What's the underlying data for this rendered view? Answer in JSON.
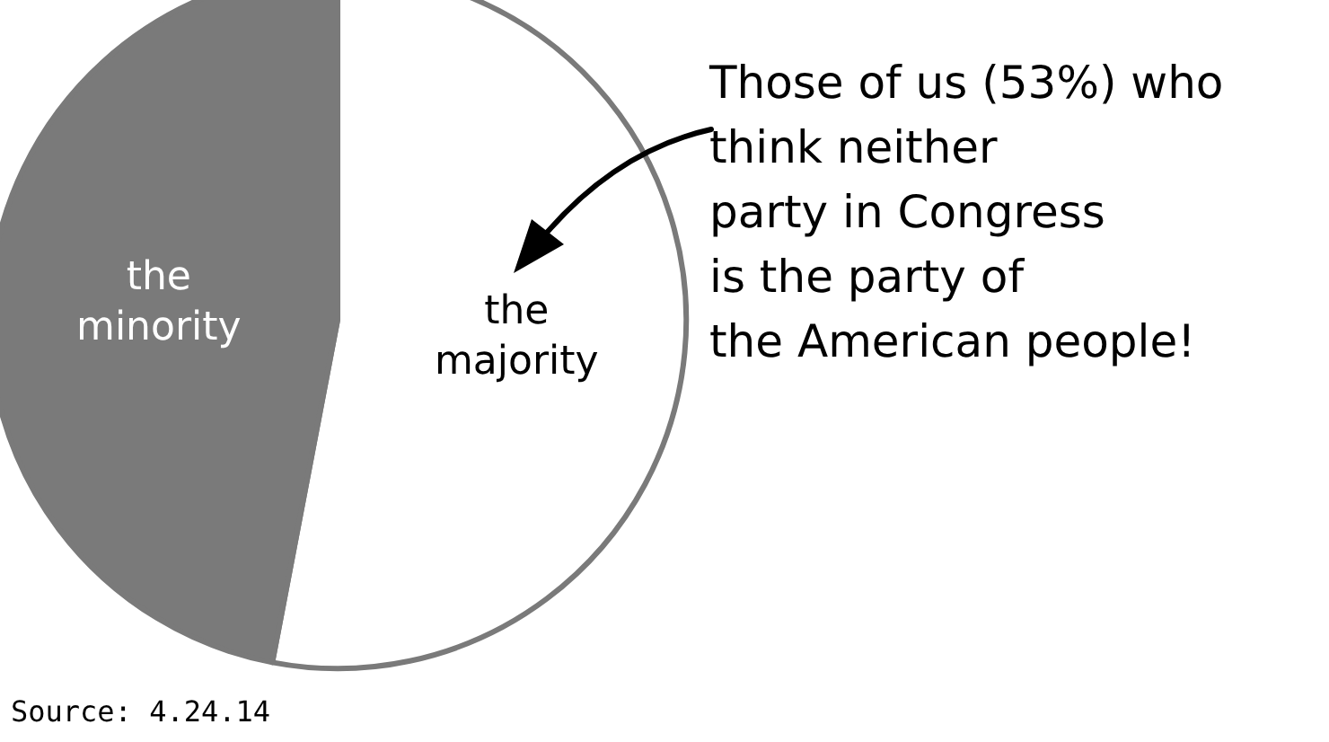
{
  "chart_data": {
    "type": "pie",
    "categories": [
      "the\nmajority",
      "the\nminority"
    ],
    "values": [
      53,
      47
    ],
    "colors": [
      "#ffffff",
      "#7a7a7a"
    ],
    "annotations": [
      "Those of us (53%) who\nthink neither\nparty in Congress\nis the party of\nthe American people!",
      "Source: 4.24.14"
    ]
  }
}
